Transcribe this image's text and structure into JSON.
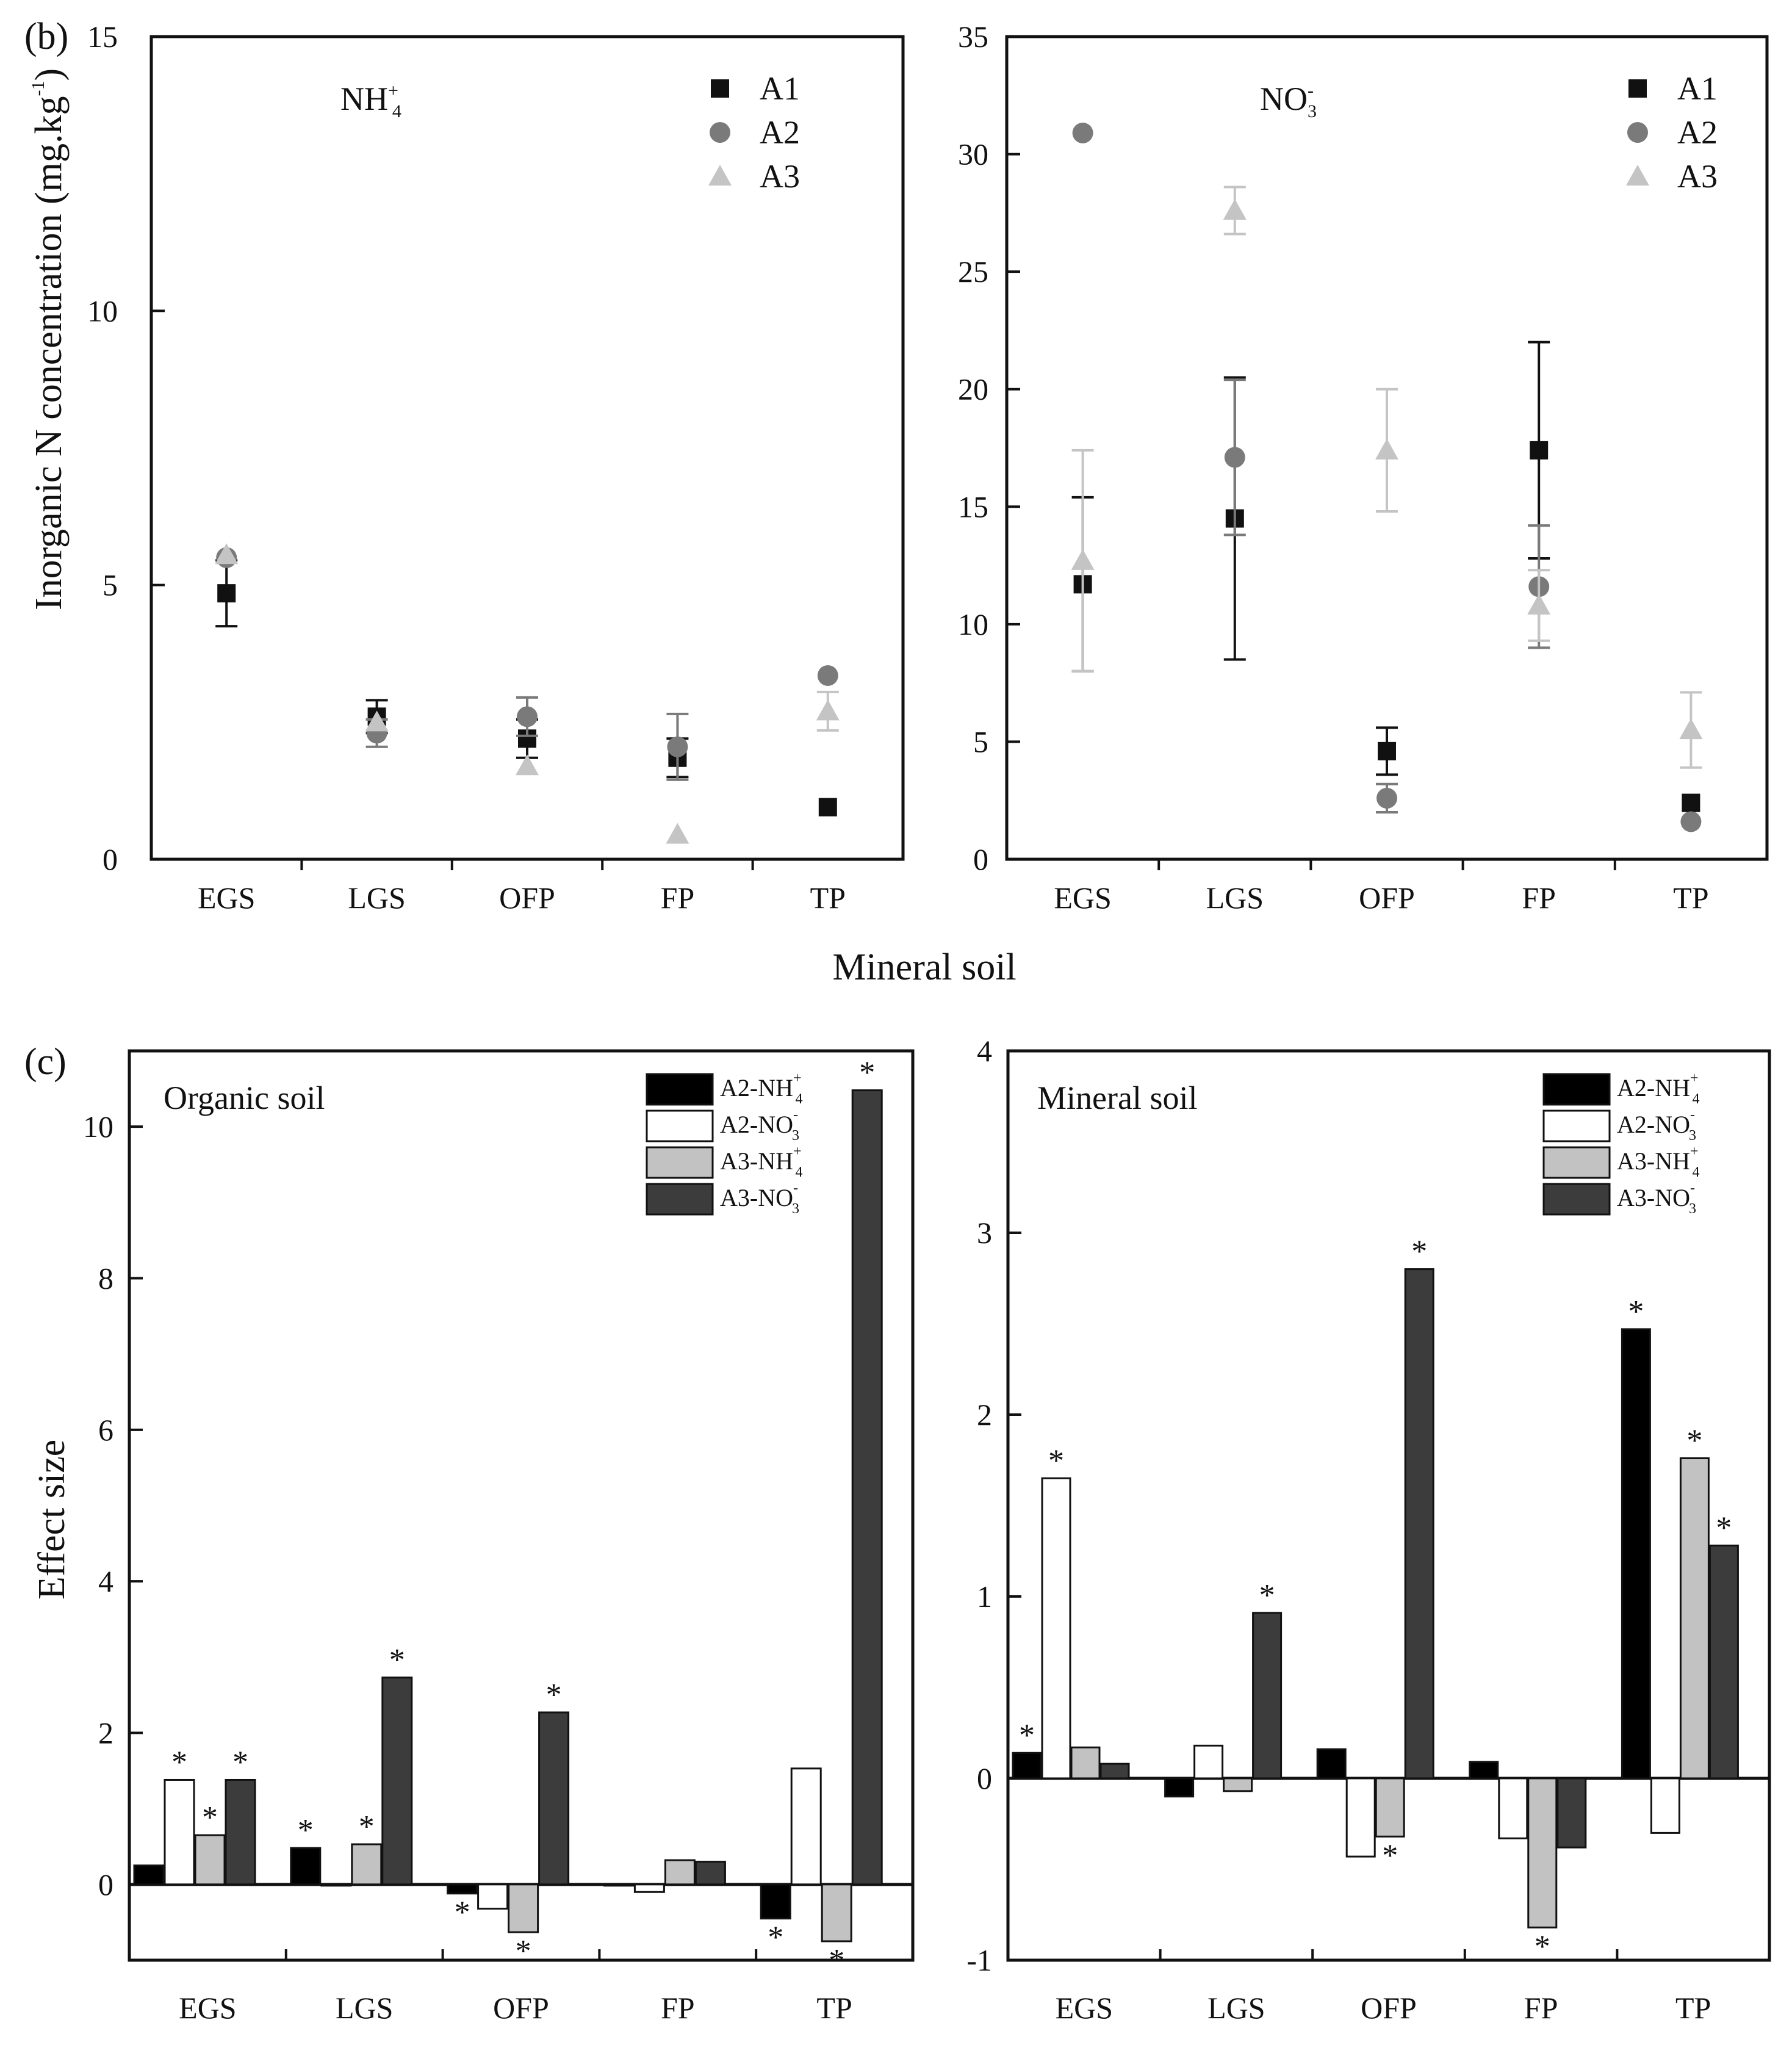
{
  "colors": {
    "A1": "#111111",
    "A2": "#7a7a7a",
    "A3": "#c4c4c4",
    "A2-NH4": "#000000",
    "A2-NO3": "#ffffff",
    "A3-NH4": "#c2c2c2",
    "A3-NO3": "#3c3c3c"
  },
  "panel_b": {
    "tag": "(b)",
    "ylabel": "Inorganic N concentration (mg.kg",
    "ylabel_sup": "-1",
    "ylabel_close": ")",
    "xlabel": "Mineral soil"
  },
  "panel_c": {
    "tag": "(c)",
    "ylabel": "Effect size"
  },
  "chart_data": [
    {
      "type": "scatter",
      "panel": "b-left",
      "title": "NH",
      "title_sub": "4",
      "title_sup": "+",
      "categories": [
        "EGS",
        "LGS",
        "OFP",
        "FP",
        "TP"
      ],
      "ylim": [
        0,
        15
      ],
      "yticks": [
        "0",
        "5",
        "10",
        "15"
      ],
      "legend": "top-right",
      "series": [
        {
          "name": "A1",
          "marker": "square",
          "values": [
            4.85,
            2.6,
            2.2,
            1.85,
            0.95
          ],
          "err": [
            0.6,
            0.3,
            0.35,
            0.35,
            0
          ]
        },
        {
          "name": "A2",
          "marker": "circle",
          "values": [
            5.5,
            2.3,
            2.6,
            2.05,
            3.35
          ],
          "err": [
            0,
            0.25,
            0.35,
            0.6,
            0
          ]
        },
        {
          "name": "A3",
          "marker": "triangle",
          "values": [
            5.55,
            2.5,
            1.7,
            0.45,
            2.7
          ],
          "err": [
            0,
            0,
            0,
            0,
            0.35
          ]
        }
      ]
    },
    {
      "type": "scatter",
      "panel": "b-right",
      "title": "NO",
      "title_sub": "3",
      "title_sup": "-",
      "categories": [
        "EGS",
        "LGS",
        "OFP",
        "FP",
        "TP"
      ],
      "ylim": [
        0,
        35
      ],
      "yticks": [
        "0",
        "5",
        "10",
        "15",
        "20",
        "25",
        "30",
        "35"
      ],
      "legend": "top-right",
      "series": [
        {
          "name": "A1",
          "marker": "square",
          "values": [
            11.7,
            14.5,
            4.6,
            17.4,
            2.4
          ],
          "err": [
            3.7,
            6.0,
            1.0,
            4.6,
            0
          ]
        },
        {
          "name": "A2",
          "marker": "circle",
          "values": [
            30.9,
            17.1,
            2.6,
            11.6,
            1.6
          ],
          "err": [
            0,
            3.3,
            0.6,
            2.6,
            0
          ]
        },
        {
          "name": "A3",
          "marker": "triangle",
          "values": [
            12.7,
            27.6,
            17.4,
            10.8,
            5.5
          ],
          "err": [
            4.7,
            1.0,
            2.6,
            1.5,
            1.6
          ]
        }
      ]
    },
    {
      "type": "bar",
      "panel": "c-left",
      "title": "Organic soil",
      "categories": [
        "EGS",
        "LGS",
        "OFP",
        "FP",
        "TP"
      ],
      "ylim": [
        -1,
        11
      ],
      "yticks": [
        "0",
        "2",
        "4",
        "6",
        "8",
        "10"
      ],
      "legend": "top-right",
      "series": [
        {
          "name": "A2-NH",
          "sub": "4",
          "sup": "+",
          "values": [
            0.25,
            0.48,
            -0.12,
            0.0,
            -0.45
          ],
          "sig": [
            false,
            true,
            true,
            false,
            true
          ]
        },
        {
          "name": "A2-NO",
          "sub": "3",
          "sup": "-",
          "values": [
            1.38,
            0.0,
            -0.32,
            -0.1,
            1.53
          ],
          "sig": [
            true,
            false,
            false,
            false,
            false
          ]
        },
        {
          "name": "A3-NH",
          "sub": "4",
          "sup": "+",
          "values": [
            0.65,
            0.53,
            -0.63,
            0.32,
            -0.75
          ],
          "sig": [
            true,
            true,
            true,
            false,
            true
          ]
        },
        {
          "name": "A3-NO",
          "sub": "3",
          "sup": "-",
          "values": [
            1.38,
            2.73,
            2.27,
            0.3,
            10.48
          ],
          "sig": [
            true,
            true,
            true,
            false,
            true
          ]
        }
      ]
    },
    {
      "type": "bar",
      "panel": "c-right",
      "title": "Mineral soil",
      "categories": [
        "EGS",
        "LGS",
        "OFP",
        "FP",
        "TP"
      ],
      "ylim": [
        -1,
        4
      ],
      "yticks": [
        "-1",
        "0",
        "1",
        "2",
        "3",
        "4"
      ],
      "legend": "top-right",
      "series": [
        {
          "name": "A2-NH",
          "sub": "4",
          "sup": "+",
          "values": [
            0.14,
            -0.1,
            0.16,
            0.09,
            2.47
          ],
          "sig": [
            true,
            false,
            false,
            false,
            true
          ]
        },
        {
          "name": "A2-NO",
          "sub": "3",
          "sup": "-",
          "values": [
            1.65,
            0.18,
            -0.43,
            -0.33,
            -0.3
          ],
          "sig": [
            true,
            false,
            false,
            false,
            false
          ]
        },
        {
          "name": "A3-NH",
          "sub": "4",
          "sup": "+",
          "values": [
            0.17,
            -0.07,
            -0.32,
            -0.82,
            1.76
          ],
          "sig": [
            false,
            false,
            true,
            true,
            true
          ]
        },
        {
          "name": "A3-NO",
          "sub": "3",
          "sup": "-",
          "values": [
            0.08,
            0.91,
            2.8,
            -0.38,
            1.28
          ],
          "sig": [
            false,
            true,
            true,
            false,
            true
          ]
        }
      ]
    }
  ]
}
